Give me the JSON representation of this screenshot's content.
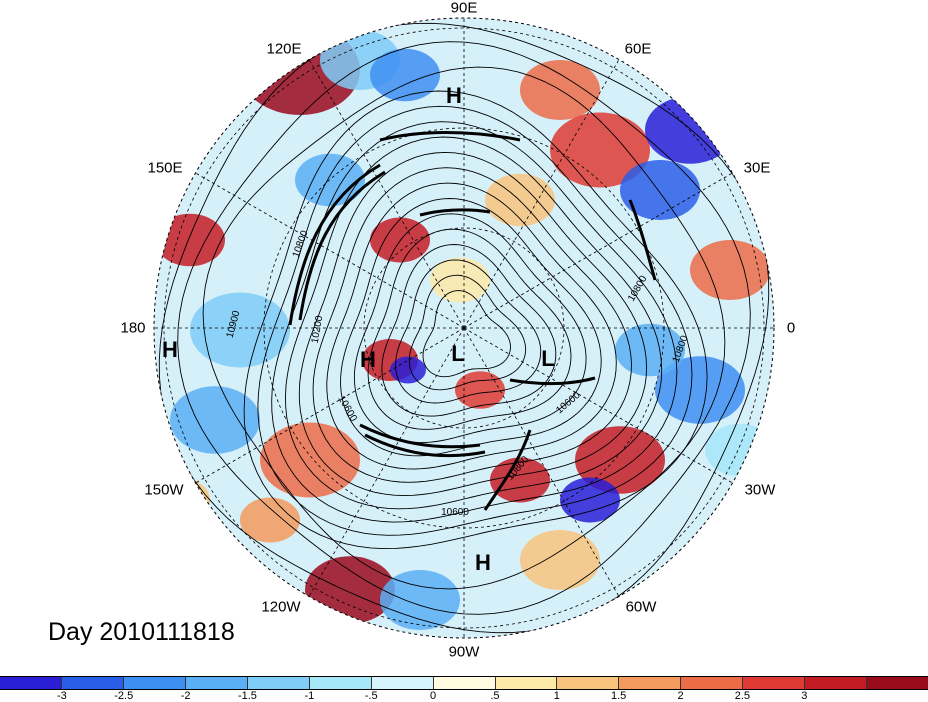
{
  "map": {
    "projection": "polar stereographic",
    "hemisphere": "north"
  },
  "lon_labels": [
    {
      "text": "90E",
      "key": "n"
    },
    {
      "text": "60E",
      "key": "n60"
    },
    {
      "text": "30E",
      "key": "n30"
    },
    {
      "text": "0",
      "key": "e"
    },
    {
      "text": "30W",
      "key": "s30"
    },
    {
      "text": "60W",
      "key": "s60"
    },
    {
      "text": "90W",
      "key": "s"
    },
    {
      "text": "120W",
      "key": "sw"
    },
    {
      "text": "150W",
      "key": "ws"
    },
    {
      "text": "180",
      "key": "w"
    },
    {
      "text": "150E",
      "key": "wn"
    },
    {
      "text": "120E",
      "key": "nw"
    }
  ],
  "pressure_systems": [
    {
      "text": "H",
      "id": "h-north"
    },
    {
      "text": "H",
      "id": "h-west"
    },
    {
      "text": "H",
      "id": "h-center"
    },
    {
      "text": "L",
      "id": "l-center"
    },
    {
      "text": "L",
      "id": "l-east"
    },
    {
      "text": "H",
      "id": "h-south"
    }
  ],
  "contour_labels": [
    "10800",
    "10900",
    "10200",
    "10600",
    "10600",
    "10800",
    "10600",
    "10800",
    "10800"
  ],
  "day_label": "Day 2010111818",
  "colorbar": {
    "colors": [
      "#2a1fd6",
      "#2b5ee8",
      "#3e8ff2",
      "#5aaff5",
      "#7fcdf7",
      "#a6e6f9",
      "#d6f4fb",
      "#fffae0",
      "#fde9a8",
      "#f8c47d",
      "#f39a5e",
      "#ed6c48",
      "#df3b34",
      "#c41c25",
      "#9a0b1c"
    ],
    "ticks": [
      "-3",
      "-2.5",
      "-2",
      "-1.5",
      "-1",
      "-.5",
      "0",
      ".5",
      "1",
      "1.5",
      "2",
      "2.5",
      "3"
    ]
  }
}
